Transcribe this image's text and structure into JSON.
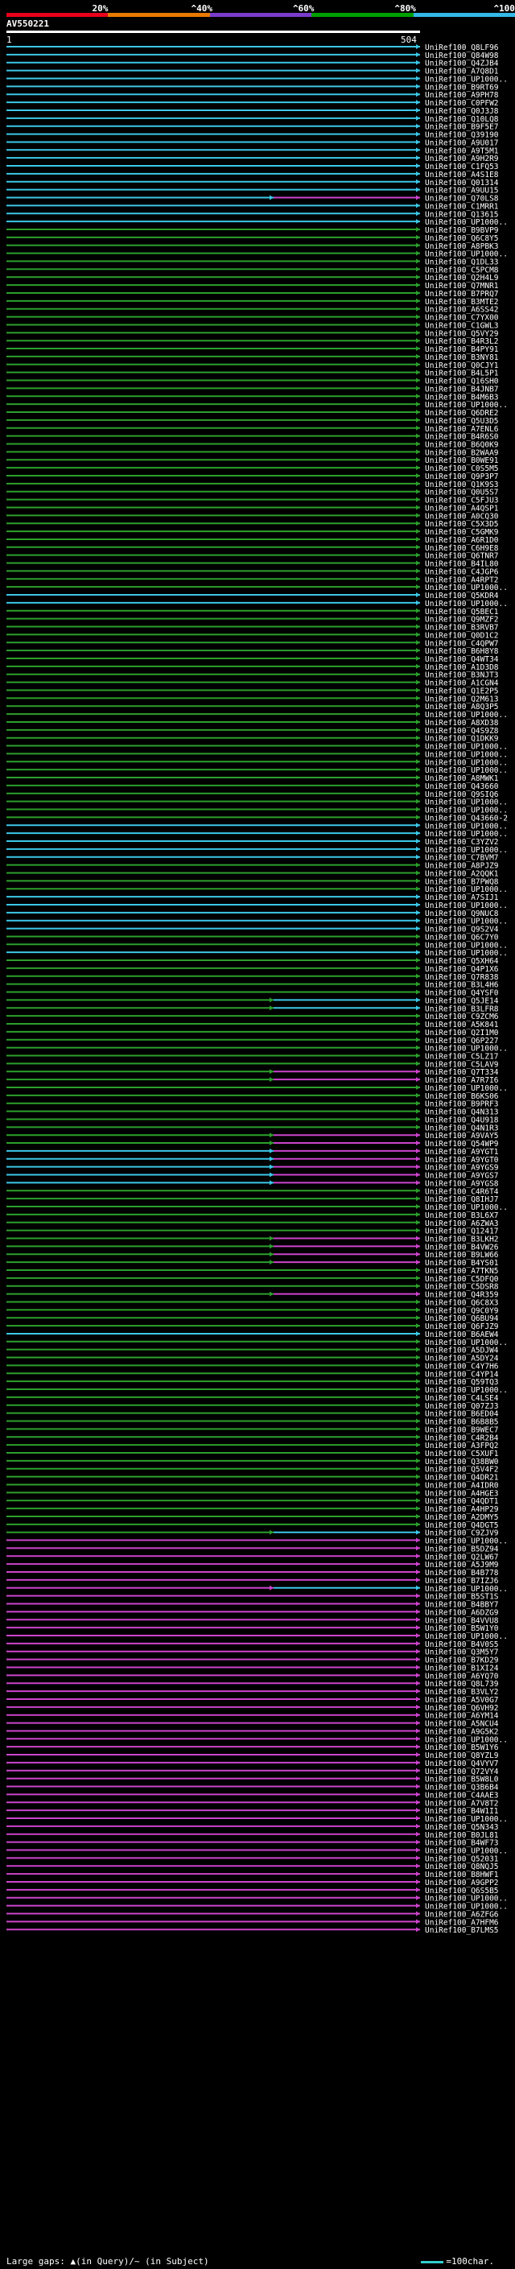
{
  "scale": {
    "labels": [
      "20%",
      "^40%",
      "^60%",
      "^80%",
      "^100%"
    ],
    "colors": [
      "#e8001c",
      "#e87a00",
      "#7a3ccc",
      "#00a000",
      "#33b8e8"
    ]
  },
  "query": {
    "id": "AV550221",
    "start": "1",
    "end": "504"
  },
  "footer": {
    "gaps_text": "Large gaps: ▲(in Query)/~ (in Subject)",
    "scale_text": "=100char."
  },
  "hit_colors": {
    "cyan": "#3cc8e8",
    "green": "#2ca02c",
    "magenta": "#cc44cc"
  },
  "hits": [
    {
      "label": "UniRef100_Q8LF96",
      "seg": "c"
    },
    {
      "label": "UniRef100_Q84W98",
      "seg": "c"
    },
    {
      "label": "UniRef100_Q4ZJB4",
      "seg": "c"
    },
    {
      "label": "UniRef100_A7Q8D1",
      "seg": "c"
    },
    {
      "label": "UniRef100_UP1000..",
      "seg": "c"
    },
    {
      "label": "UniRef100_B9RT69",
      "seg": "c"
    },
    {
      "label": "UniRef100_A9PH78",
      "seg": "c"
    },
    {
      "label": "UniRef100_C0PFW2",
      "seg": "c"
    },
    {
      "label": "UniRef100_Q0J3J8",
      "seg": "c"
    },
    {
      "label": "UniRef100_Q10LQ8",
      "seg": "c"
    },
    {
      "label": "UniRef100_B9F5E7",
      "seg": "c"
    },
    {
      "label": "UniRef100_Q39190",
      "seg": "c"
    },
    {
      "label": "UniRef100_A9U017",
      "seg": "c"
    },
    {
      "label": "UniRef100_A9T5M1",
      "seg": "c"
    },
    {
      "label": "UniRef100_A9H2R9",
      "seg": "c"
    },
    {
      "label": "UniRef100_C1FQ53",
      "seg": "c"
    },
    {
      "label": "UniRef100_A4S1E8",
      "seg": "c"
    },
    {
      "label": "UniRef100_Q01314",
      "seg": "c"
    },
    {
      "label": "UniRef100_A9UU15",
      "seg": "c"
    },
    {
      "label": "UniRef100_Q70LS8",
      "seg": "cm"
    },
    {
      "label": "UniRef100_C1MRR1",
      "seg": "c"
    },
    {
      "label": "UniRef100_Q13615",
      "seg": "c"
    },
    {
      "label": "UniRef100_UP1000..",
      "seg": "c"
    },
    {
      "label": "UniRef100_B9BVP9",
      "seg": "g"
    },
    {
      "label": "UniRef100_Q6C8Y5",
      "seg": "g"
    },
    {
      "label": "UniRef100_A8PBK3",
      "seg": "g"
    },
    {
      "label": "UniRef100_UP1000..",
      "seg": "g"
    },
    {
      "label": "UniRef100_Q1DL33",
      "seg": "g"
    },
    {
      "label": "UniRef100_C5PCM8",
      "seg": "g"
    },
    {
      "label": "UniRef100_Q2H4L9",
      "seg": "g"
    },
    {
      "label": "UniRef100_Q7MNR1",
      "seg": "g"
    },
    {
      "label": "UniRef100_B7PRQ7",
      "seg": "g"
    },
    {
      "label": "UniRef100_B3MTE2",
      "seg": "g"
    },
    {
      "label": "UniRef100_A6SS42",
      "seg": "g"
    },
    {
      "label": "UniRef100_C7YX00",
      "seg": "g"
    },
    {
      "label": "UniRef100_C1GWL3",
      "seg": "g"
    },
    {
      "label": "UniRef100_Q5VY29",
      "seg": "g"
    },
    {
      "label": "UniRef100_B4R3L2",
      "seg": "g"
    },
    {
      "label": "UniRef100_B4PY91",
      "seg": "g"
    },
    {
      "label": "UniRef100_B3NY81",
      "seg": "g"
    },
    {
      "label": "UniRef100_Q0CJY1",
      "seg": "g"
    },
    {
      "label": "UniRef100_B4L5P1",
      "seg": "g"
    },
    {
      "label": "UniRef100_Q16SH0",
      "seg": "g"
    },
    {
      "label": "UniRef100_B4JNB7",
      "seg": "g"
    },
    {
      "label": "UniRef100_B4M6B3",
      "seg": "g"
    },
    {
      "label": "UniRef100_UP1000..",
      "seg": "g"
    },
    {
      "label": "UniRef100_Q6DRE2",
      "seg": "g"
    },
    {
      "label": "UniRef100_Q5U3D5",
      "seg": "g"
    },
    {
      "label": "UniRef100_A7ENL6",
      "seg": "g"
    },
    {
      "label": "UniRef100_B4R6S0",
      "seg": "g"
    },
    {
      "label": "UniRef100_B6Q0K9",
      "seg": "g"
    },
    {
      "label": "UniRef100_B2WAA9",
      "seg": "g"
    },
    {
      "label": "UniRef100_B0WE91",
      "seg": "g"
    },
    {
      "label": "UniRef100_C0S5M5",
      "seg": "g"
    },
    {
      "label": "UniRef100_Q9P3P7",
      "seg": "g"
    },
    {
      "label": "UniRef100_Q1K9S3",
      "seg": "g"
    },
    {
      "label": "UniRef100_Q0U5S7",
      "seg": "g"
    },
    {
      "label": "UniRef100_C5FJU3",
      "seg": "g"
    },
    {
      "label": "UniRef100_A4QSP1",
      "seg": "g"
    },
    {
      "label": "UniRef100_A0CQ30",
      "seg": "g"
    },
    {
      "label": "UniRef100_C5X3D5",
      "seg": "g"
    },
    {
      "label": "UniRef100_C5GMK9",
      "seg": "g"
    },
    {
      "label": "UniRef100_A6R1D0",
      "seg": "g"
    },
    {
      "label": "UniRef100_C6H9E8",
      "seg": "g"
    },
    {
      "label": "UniRef100_Q6TNR7",
      "seg": "g"
    },
    {
      "label": "UniRef100_B4IL80",
      "seg": "g"
    },
    {
      "label": "UniRef100_C4JGP6",
      "seg": "g"
    },
    {
      "label": "UniRef100_A4RPT2",
      "seg": "g"
    },
    {
      "label": "UniRef100_UP1000..",
      "seg": "g"
    },
    {
      "label": "UniRef100_Q5KDR4",
      "seg": "c"
    },
    {
      "label": "UniRef100_UP1000..",
      "seg": "c"
    },
    {
      "label": "UniRef100_Q5BEC1",
      "seg": "g"
    },
    {
      "label": "UniRef100_Q9MZF2",
      "seg": "g"
    },
    {
      "label": "UniRef100_B3RVB7",
      "seg": "g"
    },
    {
      "label": "UniRef100_Q0D1C2",
      "seg": "g"
    },
    {
      "label": "UniRef100_C4QPW7",
      "seg": "g"
    },
    {
      "label": "UniRef100_B6H8Y8",
      "seg": "g"
    },
    {
      "label": "UniRef100_Q4WT34",
      "seg": "g"
    },
    {
      "label": "UniRef100_A1D3D8",
      "seg": "g"
    },
    {
      "label": "UniRef100_B3NJT3",
      "seg": "g"
    },
    {
      "label": "UniRef100_A1CGN4",
      "seg": "g"
    },
    {
      "label": "UniRef100_Q1E2P5",
      "seg": "g"
    },
    {
      "label": "UniRef100_Q2M613",
      "seg": "g"
    },
    {
      "label": "UniRef100_A8Q3P5",
      "seg": "g"
    },
    {
      "label": "UniRef100_UP1000..",
      "seg": "g"
    },
    {
      "label": "UniRef100_A8XD38",
      "seg": "g"
    },
    {
      "label": "UniRef100_Q4S9Z8",
      "seg": "g"
    },
    {
      "label": "UniRef100_Q1DKK9",
      "seg": "g"
    },
    {
      "label": "UniRef100_UP1000..",
      "seg": "g"
    },
    {
      "label": "UniRef100_UP1000..",
      "seg": "g"
    },
    {
      "label": "UniRef100_UP1000..",
      "seg": "g"
    },
    {
      "label": "UniRef100_UP1000..",
      "seg": "g"
    },
    {
      "label": "UniRef100_A8MWK1",
      "seg": "g"
    },
    {
      "label": "UniRef100_Q43660",
      "seg": "g"
    },
    {
      "label": "UniRef100_Q9SIQ6",
      "seg": "g"
    },
    {
      "label": "UniRef100_UP1000..",
      "seg": "g"
    },
    {
      "label": "UniRef100_UP1000..",
      "seg": "g"
    },
    {
      "label": "UniRef100_Q43660-2",
      "seg": "g"
    },
    {
      "label": "UniRef100_UP1000..",
      "seg": "c"
    },
    {
      "label": "UniRef100_UP1000..",
      "seg": "c"
    },
    {
      "label": "UniRef100_C3YZV2",
      "seg": "c"
    },
    {
      "label": "UniRef100_UP1000..",
      "seg": "c"
    },
    {
      "label": "UniRef100_C7BVM7",
      "seg": "c"
    },
    {
      "label": "UniRef100_A8PJZ9",
      "seg": "g"
    },
    {
      "label": "UniRef100_A2QQK1",
      "seg": "g"
    },
    {
      "label": "UniRef100_B7PWQ8",
      "seg": "g"
    },
    {
      "label": "UniRef100_UP1000..",
      "seg": "g"
    },
    {
      "label": "UniRef100_A7SIJ1",
      "seg": "c"
    },
    {
      "label": "UniRef100_UP1000..",
      "seg": "c"
    },
    {
      "label": "UniRef100_Q9NUC8",
      "seg": "c"
    },
    {
      "label": "UniRef100_UP1000..",
      "seg": "c"
    },
    {
      "label": "UniRef100_Q9S2V4",
      "seg": "c"
    },
    {
      "label": "UniRef100_Q6C7Y0",
      "seg": "g"
    },
    {
      "label": "UniRef100_UP1000..",
      "seg": "g"
    },
    {
      "label": "UniRef100_UP1000..",
      "seg": "c"
    },
    {
      "label": "UniRef100_Q5XH64",
      "seg": "g"
    },
    {
      "label": "UniRef100_Q4P1X6",
      "seg": "g"
    },
    {
      "label": "UniRef100_Q7R838",
      "seg": "g"
    },
    {
      "label": "UniRef100_B3L4H6",
      "seg": "g"
    },
    {
      "label": "UniRef100_Q4YSF0",
      "seg": "g"
    },
    {
      "label": "UniRef100_Q5JE14",
      "seg": "gc"
    },
    {
      "label": "UniRef100_B3LFR8",
      "seg": "gc"
    },
    {
      "label": "UniRef100_C9ZCM6",
      "seg": "g"
    },
    {
      "label": "UniRef100_A5K841",
      "seg": "g"
    },
    {
      "label": "UniRef100_Q2I1M0",
      "seg": "g"
    },
    {
      "label": "UniRef100_Q6P227",
      "seg": "g"
    },
    {
      "label": "UniRef100_UP1000..",
      "seg": "g"
    },
    {
      "label": "UniRef100_C5LZ17",
      "seg": "g"
    },
    {
      "label": "UniRef100_C5LAV9",
      "seg": "g"
    },
    {
      "label": "UniRef100_Q7T334",
      "seg": "gm"
    },
    {
      "label": "UniRef100_A7R7I6",
      "seg": "gm"
    },
    {
      "label": "UniRef100_UP1000..",
      "seg": "g"
    },
    {
      "label": "UniRef100_B6KS06",
      "seg": "g"
    },
    {
      "label": "UniRef100_B9PRF3",
      "seg": "g"
    },
    {
      "label": "UniRef100_Q4N313",
      "seg": "g"
    },
    {
      "label": "UniRef100_Q4U918",
      "seg": "g"
    },
    {
      "label": "UniRef100_Q4N1R3",
      "seg": "g"
    },
    {
      "label": "UniRef100_A9VAY5",
      "seg": "gm"
    },
    {
      "label": "UniRef100_Q54WP9",
      "seg": "gm"
    },
    {
      "label": "UniRef100_A9YGT1",
      "seg": "cm"
    },
    {
      "label": "UniRef100_A9YGT0",
      "seg": "cm"
    },
    {
      "label": "UniRef100_A9YGS9",
      "seg": "cm"
    },
    {
      "label": "UniRef100_A9YGS7",
      "seg": "cm"
    },
    {
      "label": "UniRef100_A9YGS8",
      "seg": "cm"
    },
    {
      "label": "UniRef100_C4R6T4",
      "seg": "g"
    },
    {
      "label": "UniRef100_Q8IHJ7",
      "seg": "g"
    },
    {
      "label": "UniRef100_UP1000..",
      "seg": "g"
    },
    {
      "label": "UniRef100_B3L6X7",
      "seg": "g"
    },
    {
      "label": "UniRef100_A6ZWA3",
      "seg": "g"
    },
    {
      "label": "UniRef100_Q12417",
      "seg": "g"
    },
    {
      "label": "UniRef100_B3LKH2",
      "seg": "gm"
    },
    {
      "label": "UniRef100_B4VW26",
      "seg": "gm"
    },
    {
      "label": "UniRef100_B9LW66",
      "seg": "gm"
    },
    {
      "label": "UniRef100_B4YS01",
      "seg": "gm"
    },
    {
      "label": "UniRef100_A7TKN5",
      "seg": "g"
    },
    {
      "label": "UniRef100_C5DFQ0",
      "seg": "g"
    },
    {
      "label": "UniRef100_C5DSR8",
      "seg": "g"
    },
    {
      "label": "UniRef100_Q4R359",
      "seg": "gm"
    },
    {
      "label": "UniRef100_Q6C8X3",
      "seg": "g"
    },
    {
      "label": "UniRef100_Q9C0Y9",
      "seg": "g"
    },
    {
      "label": "UniRef100_Q6BU94",
      "seg": "g"
    },
    {
      "label": "UniRef100_Q6FJZ9",
      "seg": "g"
    },
    {
      "label": "UniRef100_B6AEW4",
      "seg": "c"
    },
    {
      "label": "UniRef100_UP1000..",
      "seg": "g"
    },
    {
      "label": "UniRef100_A5DJW4",
      "seg": "g"
    },
    {
      "label": "UniRef100_A5DY24",
      "seg": "g"
    },
    {
      "label": "UniRef100_C4Y7H6",
      "seg": "g"
    },
    {
      "label": "UniRef100_C4YP14",
      "seg": "g"
    },
    {
      "label": "UniRef100_Q59TQ3",
      "seg": "g"
    },
    {
      "label": "UniRef100_UP1000..",
      "seg": "g"
    },
    {
      "label": "UniRef100_C4LSE4",
      "seg": "g"
    },
    {
      "label": "UniRef100_Q07ZJ3",
      "seg": "g"
    },
    {
      "label": "UniRef100_B6ED04",
      "seg": "g"
    },
    {
      "label": "UniRef100_B6B8B5",
      "seg": "g"
    },
    {
      "label": "UniRef100_B9WEC7",
      "seg": "g"
    },
    {
      "label": "UniRef100_C4R2B4",
      "seg": "g"
    },
    {
      "label": "UniRef100_A3FPQ2",
      "seg": "g"
    },
    {
      "label": "UniRef100_C5XUF1",
      "seg": "g"
    },
    {
      "label": "UniRef100_Q38BW0",
      "seg": "g"
    },
    {
      "label": "UniRef100_Q5V4F2",
      "seg": "g"
    },
    {
      "label": "UniRef100_Q4DR21",
      "seg": "g"
    },
    {
      "label": "UniRef100_A4IDR0",
      "seg": "g"
    },
    {
      "label": "UniRef100_A4HGE3",
      "seg": "g"
    },
    {
      "label": "UniRef100_Q4QDT1",
      "seg": "g"
    },
    {
      "label": "UniRef100_A4HP29",
      "seg": "g"
    },
    {
      "label": "UniRef100_A2DMY5",
      "seg": "g"
    },
    {
      "label": "UniRef100_Q4DGT5",
      "seg": "g"
    },
    {
      "label": "UniRef100_C9ZJV9",
      "seg": "gc"
    },
    {
      "label": "UniRef100_UP1000..",
      "seg": "m"
    },
    {
      "label": "UniRef100_B5DZ94",
      "seg": "m"
    },
    {
      "label": "UniRef100_Q2LW67",
      "seg": "m"
    },
    {
      "label": "UniRef100_A5J9M9",
      "seg": "m"
    },
    {
      "label": "UniRef100_B4B778",
      "seg": "m"
    },
    {
      "label": "UniRef100_B7IZJ6",
      "seg": "m"
    },
    {
      "label": "UniRef100_UP1000..",
      "seg": "mc"
    },
    {
      "label": "UniRef100_B5ST1S",
      "seg": "m"
    },
    {
      "label": "UniRef100_B4BBY7",
      "seg": "m"
    },
    {
      "label": "UniRef100_A6DZG9",
      "seg": "m"
    },
    {
      "label": "UniRef100_B4VVU8",
      "seg": "m"
    },
    {
      "label": "UniRef100_B5W1Y0",
      "seg": "m"
    },
    {
      "label": "UniRef100_UP1000..",
      "seg": "m"
    },
    {
      "label": "UniRef100_B4V0S5",
      "seg": "m"
    },
    {
      "label": "UniRef100_Q3M5Y7",
      "seg": "m"
    },
    {
      "label": "UniRef100_B7KD29",
      "seg": "m"
    },
    {
      "label": "UniRef100_B1XI24",
      "seg": "m"
    },
    {
      "label": "UniRef100_A6YQ70",
      "seg": "m"
    },
    {
      "label": "UniRef100_Q8L739",
      "seg": "m"
    },
    {
      "label": "UniRef100_B3VLY2",
      "seg": "m"
    },
    {
      "label": "UniRef100_A5V0G7",
      "seg": "m"
    },
    {
      "label": "UniRef100_Q6VH92",
      "seg": "m"
    },
    {
      "label": "UniRef100_A6YM14",
      "seg": "m"
    },
    {
      "label": "UniRef100_A5NCU4",
      "seg": "m"
    },
    {
      "label": "UniRef100_A9G5K2",
      "seg": "m"
    },
    {
      "label": "UniRef100_UP1000..",
      "seg": "m"
    },
    {
      "label": "UniRef100_B5W1Y6",
      "seg": "m"
    },
    {
      "label": "UniRef100_Q8YZL9",
      "seg": "m"
    },
    {
      "label": "UniRef100_Q4VYV7",
      "seg": "m"
    },
    {
      "label": "UniRef100_Q72VY4",
      "seg": "m"
    },
    {
      "label": "UniRef100_B5W8L0",
      "seg": "m"
    },
    {
      "label": "UniRef100_Q3B6B4",
      "seg": "m"
    },
    {
      "label": "UniRef100_C4AAE3",
      "seg": "m"
    },
    {
      "label": "UniRef100_A7V8T2",
      "seg": "m"
    },
    {
      "label": "UniRef100_B4W1I1",
      "seg": "m"
    },
    {
      "label": "UniRef100_UP1000..",
      "seg": "m"
    },
    {
      "label": "UniRef100_Q5N343",
      "seg": "m"
    },
    {
      "label": "UniRef100_B0JL81",
      "seg": "m"
    },
    {
      "label": "UniRef100_B4WF73",
      "seg": "m"
    },
    {
      "label": "UniRef100_UP1000..",
      "seg": "m"
    },
    {
      "label": "UniRef100_Q52031",
      "seg": "m"
    },
    {
      "label": "UniRef100_Q8NQJ5",
      "seg": "m"
    },
    {
      "label": "UniRef100_B8HWF1",
      "seg": "m"
    },
    {
      "label": "UniRef100_A9GPP2",
      "seg": "m"
    },
    {
      "label": "UniRef100_Q6S5B5",
      "seg": "m"
    },
    {
      "label": "UniRef100_UP1000..",
      "seg": "m"
    },
    {
      "label": "UniRef100_UP1000..",
      "seg": "m"
    },
    {
      "label": "UniRef100_A6ZFG6",
      "seg": "m"
    },
    {
      "label": "UniRef100_A7HFM6",
      "seg": "m"
    },
    {
      "label": "UniRef100_B7LMS5",
      "seg": "m"
    }
  ]
}
